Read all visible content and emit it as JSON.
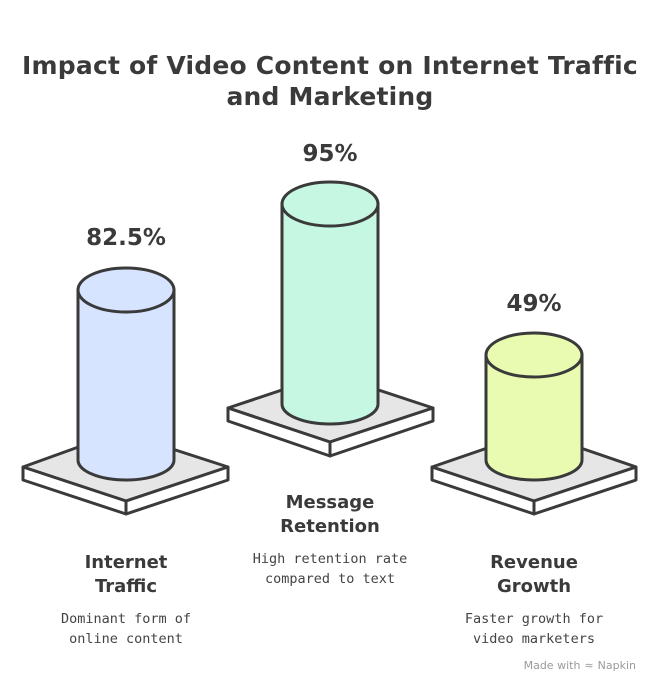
{
  "title": {
    "line1": "Impact of Video Content on Internet Traffic",
    "line2": "and Marketing"
  },
  "items": [
    {
      "value": "82.5%",
      "label_line1": "Internet",
      "label_line2": "Traffic",
      "desc_line1": "Dominant form of",
      "desc_line2": "online content",
      "color": "#d6e4ff"
    },
    {
      "value": "95%",
      "label_line1": "Message",
      "label_line2": "Retention",
      "desc_line1": "High retention rate",
      "desc_line2": "compared to text",
      "color": "#c6f7e2"
    },
    {
      "value": "49%",
      "label_line1": "Revenue",
      "label_line2": "Growth",
      "desc_line1": "Faster growth for",
      "desc_line2": "video marketers",
      "color": "#e9fbb0"
    }
  ],
  "brand": {
    "prefix": "Made with",
    "icon": "napkin-logo-icon",
    "name": "Napkin"
  }
}
